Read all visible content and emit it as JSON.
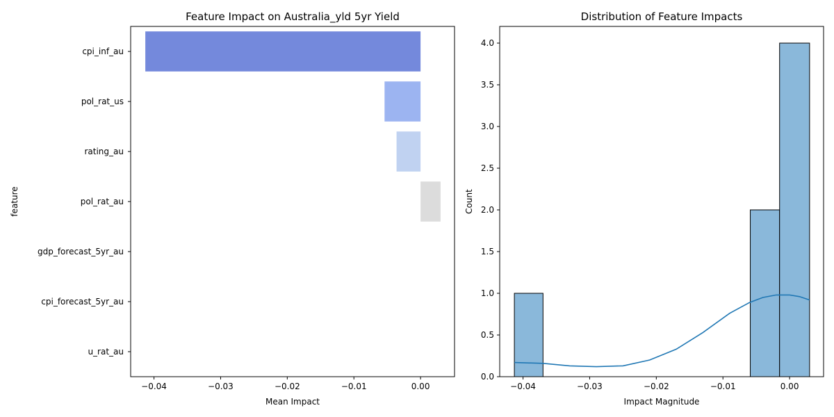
{
  "chart_data": [
    {
      "type": "bar",
      "orientation": "horizontal",
      "title": "Feature Impact on Australia_yld 5yr Yield",
      "xlabel": "Mean Impact",
      "ylabel": "feature",
      "xlim": [
        -0.0435,
        0.0051
      ],
      "xticks": [
        -0.04,
        -0.03,
        -0.02,
        -0.01,
        0.0
      ],
      "xtick_labels": [
        "−0.04",
        "−0.03",
        "−0.02",
        "−0.01",
        "0.00"
      ],
      "categories": [
        "cpi_inf_au",
        "pol_rat_us",
        "rating_au",
        "pol_rat_au",
        "gdp_forecast_5yr_au",
        "cpi_forecast_5yr_au",
        "u_rat_au"
      ],
      "values": [
        -0.0413,
        -0.0054,
        -0.0036,
        0.003,
        0.0,
        0.0,
        0.0
      ],
      "colors": [
        "#7489dc",
        "#9cb4f1",
        "#c0d2f1",
        "#dcdcdc",
        "#f0c9b6",
        "#f0a78b",
        "#dd6853"
      ],
      "grid": false,
      "legend": "none"
    },
    {
      "type": "histogram",
      "title": "Distribution of Feature Impacts",
      "xlabel": "Impact Magnitude",
      "ylabel": "Count",
      "xlim": [
        -0.0435,
        0.0051
      ],
      "ylim": [
        0,
        4.2
      ],
      "xticks": [
        -0.04,
        -0.03,
        -0.02,
        -0.01,
        0.0
      ],
      "xtick_labels": [
        "−0.04",
        "−0.03",
        "−0.02",
        "−0.01",
        "0.00"
      ],
      "yticks": [
        0,
        0.5,
        1,
        1.5,
        2,
        2.5,
        3,
        3.5,
        4
      ],
      "ytick_labels": [
        "0.0",
        "0.5",
        "1.0",
        "1.5",
        "2.0",
        "2.5",
        "3.0",
        "3.5",
        "4.0"
      ],
      "bins": [
        {
          "x0": -0.0413,
          "x1": -0.037,
          "count": 1
        },
        {
          "x0": -0.0059,
          "x1": -0.0015,
          "count": 2
        },
        {
          "x0": -0.0015,
          "x1": 0.003,
          "count": 4
        }
      ],
      "kde": {
        "x": [
          -0.0413,
          -0.037,
          -0.033,
          -0.029,
          -0.025,
          -0.021,
          -0.017,
          -0.013,
          -0.009,
          -0.006,
          -0.004,
          -0.002,
          -0.001,
          0.0,
          0.0015,
          0.003
        ],
        "y": [
          0.17,
          0.16,
          0.13,
          0.12,
          0.13,
          0.2,
          0.33,
          0.53,
          0.76,
          0.89,
          0.95,
          0.98,
          0.98,
          0.98,
          0.96,
          0.92
        ]
      },
      "bar_color": "#8ab8da",
      "kde_color": "#1f77b4",
      "grid": false,
      "legend": "none"
    }
  ]
}
